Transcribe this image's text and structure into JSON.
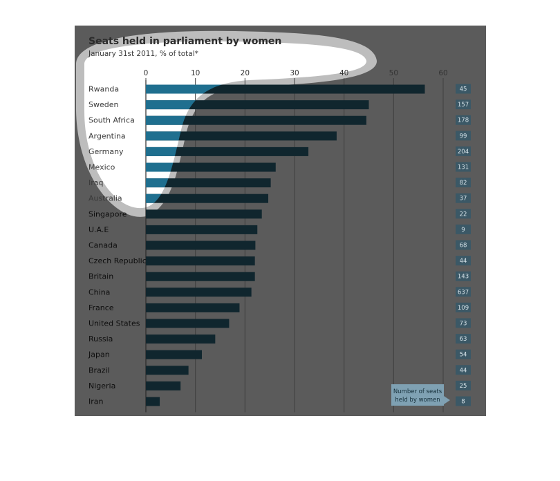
{
  "chart_data": {
    "type": "bar",
    "orientation": "horizontal",
    "title": "Seats held in parliament by women",
    "subtitle": "January 31st 2011, % of total*",
    "xlim": [
      0,
      60
    ],
    "xticks": [
      0,
      10,
      20,
      30,
      40,
      50,
      60
    ],
    "grid": true,
    "categories": [
      "Rwanda",
      "Sweden",
      "South Africa",
      "Argentina",
      "Germany",
      "Mexico",
      "Iraq",
      "Australia",
      "Singapore",
      "U.A.E",
      "Canada",
      "Czech Republic",
      "Britain",
      "China",
      "France",
      "United States",
      "Russia",
      "Japan",
      "Brazil",
      "Nigeria",
      "Iran"
    ],
    "values": [
      56.3,
      45.0,
      44.5,
      38.5,
      32.8,
      26.2,
      25.2,
      24.7,
      23.4,
      22.5,
      22.1,
      22.0,
      22.0,
      21.3,
      18.9,
      16.8,
      14.0,
      11.3,
      8.6,
      7.0,
      2.8
    ],
    "seats": [
      45,
      157,
      178,
      99,
      204,
      131,
      82,
      37,
      22,
      9,
      68,
      44,
      143,
      637,
      109,
      73,
      63,
      54,
      44,
      25,
      8
    ],
    "seats_legend": "Number of seats held by women",
    "colors": {
      "overlay": "#5b5b5b",
      "bar_highlight": "#1f6f8f",
      "bar_dark": "#10262e",
      "seat_box": "#3b5866",
      "note_box": "#7fa1b3",
      "spotlight_ring": "#bdbdbd"
    }
  }
}
